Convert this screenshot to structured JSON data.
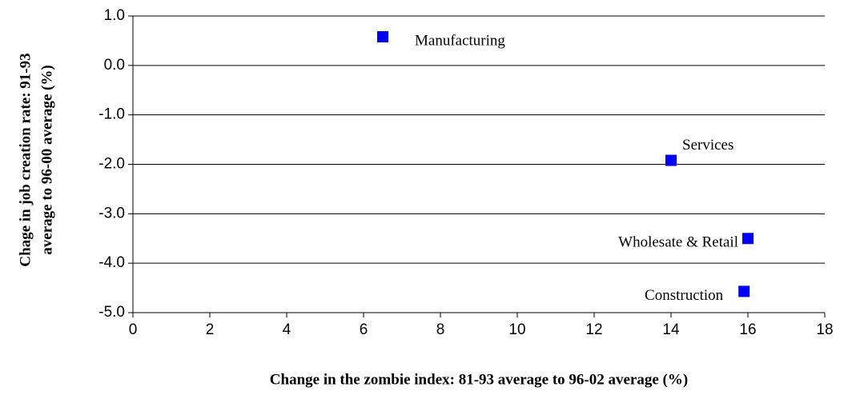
{
  "chart_data": {
    "type": "scatter",
    "xlabel": "Change in the zombie index: 81-93 average to 96-02 average (%)",
    "ylabel": [
      "Chage in job creation rate: 91-93",
      "average to 96-00 average (%)"
    ],
    "x": [
      6.5,
      14.0,
      16.0,
      15.9
    ],
    "values": [
      0.58,
      -1.92,
      -3.5,
      -4.57
    ],
    "point_labels": [
      "Manufacturing",
      "Services",
      "Wholesate & Retail",
      "Construction"
    ],
    "color": "#0000ff",
    "xlim": [
      0,
      18
    ],
    "xticks": [
      0,
      2,
      4,
      6,
      8,
      10,
      12,
      14,
      16,
      18
    ],
    "ylim": [
      -5,
      1
    ],
    "yticks": [
      {
        "value": 1,
        "label": "1.0"
      },
      {
        "value": 0,
        "label": "0.0"
      },
      {
        "value": -1,
        "label": "-1.0"
      },
      {
        "value": -2,
        "label": "-2.0"
      },
      {
        "value": -3,
        "label": "-3.0"
      },
      {
        "value": -4,
        "label": "-4.0"
      },
      {
        "value": -5,
        "label": "-5.0"
      }
    ],
    "grid": true
  }
}
